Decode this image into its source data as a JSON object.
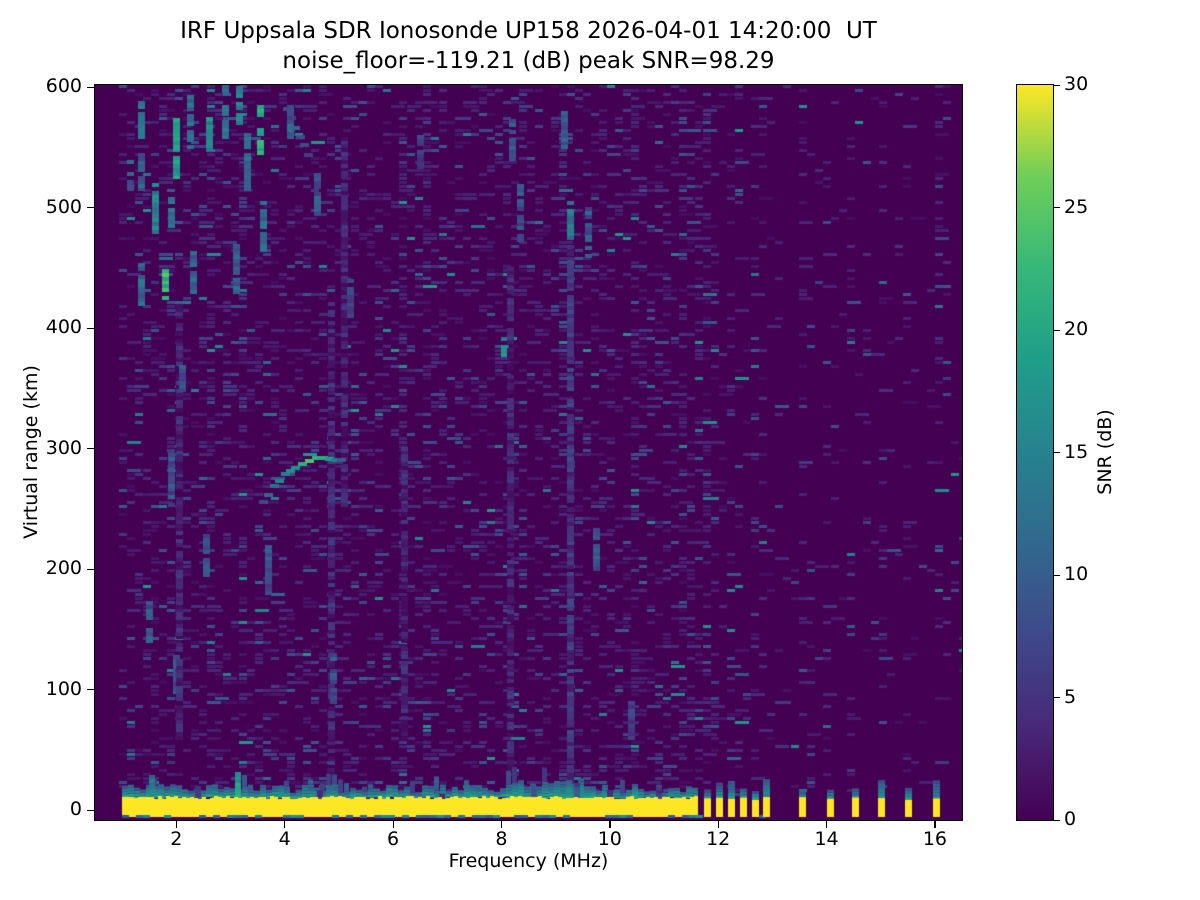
{
  "title": "IRF Uppsala SDR Ionosonde UP158 2026-04-01 14:20:00  UT",
  "subtitle": "noise_floor=-119.21 (dB) peak SNR=98.29",
  "station": "UP158",
  "timestamp_shown": "2026-04-01 14:20:00 UT",
  "noise_floor_db": -119.21,
  "peak_snr_db": 98.29,
  "chart_data": {
    "type": "heatmap",
    "title": "IRF Uppsala SDR Ionosonde UP158 2026-04-01 14:20:00  UT",
    "subtitle": "noise_floor=-119.21 (dB) peak SNR=98.29",
    "xlabel": "Frequency (MHz)",
    "ylabel": "Virtual range (km)",
    "xlim": [
      0.5,
      16.5
    ],
    "ylim": [
      -8,
      602
    ],
    "x_ticks": [
      2,
      4,
      6,
      8,
      10,
      12,
      14,
      16
    ],
    "y_ticks": [
      0,
      100,
      200,
      300,
      400,
      500,
      600
    ],
    "grid": false,
    "colorbar": {
      "label": "SNR (dB)",
      "min": 0,
      "max": 30,
      "ticks": [
        0,
        5,
        10,
        15,
        20,
        25,
        30
      ],
      "colormap": "viridis",
      "position": "right"
    },
    "colormap_stops": [
      [
        0.0,
        "#440154"
      ],
      [
        0.125,
        "#482878"
      ],
      [
        0.25,
        "#3e4989"
      ],
      [
        0.375,
        "#31688e"
      ],
      [
        0.5,
        "#26828e"
      ],
      [
        0.625,
        "#1f9e89"
      ],
      [
        0.75,
        "#35b779"
      ],
      [
        0.875,
        "#6ece58"
      ],
      [
        1.0,
        "#fde725"
      ]
    ],
    "colors": {
      "background_snr0": "#440154",
      "band_yellow": "#fde725"
    },
    "data_start_mhz": 1.0,
    "features": {
      "ground_pulse_band": {
        "freq_start_mhz": 1.0,
        "freq_end_mhz": 11.6,
        "range_km": 0,
        "top_km": 11,
        "bottom_km": -6,
        "snr_db": 30
      },
      "band_fringe": {
        "range_km": [
          10,
          30
        ],
        "snr_db": [
          8,
          20
        ],
        "denser_mhz": [
          8.0,
          9.7
        ]
      },
      "band_spikes": [
        [
          1.55,
          28,
          20
        ],
        [
          2.4,
          18,
          12
        ],
        [
          3.14,
          32,
          24
        ],
        [
          4.65,
          16,
          12
        ],
        [
          6.9,
          14,
          10
        ],
        [
          8.6,
          20,
          14
        ],
        [
          9.4,
          22,
          14
        ],
        [
          10.0,
          16,
          11
        ],
        [
          10.9,
          18,
          12
        ]
      ],
      "interference_stripes_mhz": [
        11.79,
        12.01,
        12.24,
        12.45,
        12.68,
        12.89,
        13.54,
        14.06,
        14.52,
        15.0,
        15.51,
        16.02
      ],
      "interference_stripe_snr_db": 30,
      "echo_traces": [
        {
          "points": [
            [
              3.6,
              255
            ],
            [
              3.8,
              268
            ],
            [
              4.0,
              278
            ],
            [
              4.2,
              285
            ],
            [
              4.45,
              290
            ],
            [
              4.7,
              292
            ],
            [
              4.95,
              291
            ],
            [
              5.12,
              289
            ]
          ],
          "snr_db": [
            9,
            12,
            15,
            19,
            26,
            20,
            13,
            9
          ]
        },
        {
          "points": [
            [
              4.05,
              582
            ],
            [
              4.2,
              566
            ],
            [
              4.35,
              551
            ],
            [
              4.52,
              538
            ]
          ],
          "snr_db": [
            7,
            9,
            9,
            7
          ]
        }
      ],
      "rfi_streaks": [
        [
          1.15,
          515,
          540,
          10
        ],
        [
          1.35,
          555,
          590,
          13
        ],
        [
          1.35,
          515,
          545,
          10
        ],
        [
          1.35,
          420,
          455,
          11
        ],
        [
          1.5,
          140,
          175,
          9
        ],
        [
          1.6,
          480,
          520,
          15
        ],
        [
          1.8,
          425,
          450,
          22
        ],
        [
          1.9,
          485,
          510,
          13
        ],
        [
          1.9,
          250,
          300,
          8
        ],
        [
          2.0,
          525,
          575,
          18
        ],
        [
          2.0,
          95,
          130,
          8
        ],
        [
          2.05,
          60,
          420,
          3.5
        ],
        [
          2.1,
          345,
          370,
          9
        ],
        [
          2.25,
          550,
          595,
          12
        ],
        [
          2.3,
          430,
          465,
          10
        ],
        [
          2.55,
          195,
          230,
          9
        ],
        [
          2.6,
          548,
          575,
          16
        ],
        [
          2.9,
          555,
          600,
          12
        ],
        [
          3.1,
          430,
          470,
          10
        ],
        [
          3.15,
          570,
          600,
          14
        ],
        [
          3.3,
          515,
          560,
          11
        ],
        [
          3.55,
          545,
          585,
          20
        ],
        [
          3.6,
          465,
          505,
          12
        ],
        [
          3.7,
          180,
          220,
          8
        ],
        [
          4.1,
          555,
          585,
          10
        ],
        [
          4.6,
          495,
          530,
          9
        ],
        [
          4.85,
          20,
          420,
          3.5
        ],
        [
          4.9,
          90,
          130,
          8
        ],
        [
          5.1,
          250,
          560,
          3
        ],
        [
          5.2,
          410,
          440,
          8
        ],
        [
          6.2,
          60,
          300,
          3
        ],
        [
          6.5,
          530,
          560,
          7
        ],
        [
          8.05,
          378,
          395,
          16
        ],
        [
          8.16,
          30,
          450,
          3
        ],
        [
          8.2,
          540,
          575,
          9
        ],
        [
          8.35,
          470,
          520,
          8
        ],
        [
          9.15,
          550,
          585,
          9
        ],
        [
          9.27,
          10,
          470,
          5
        ],
        [
          9.27,
          475,
          505,
          13
        ],
        [
          9.6,
          460,
          500,
          9
        ],
        [
          9.75,
          200,
          235,
          8
        ],
        [
          10.4,
          60,
          90,
          7
        ]
      ],
      "noise_speckle": {
        "density_below_11_65_mhz": 0.22,
        "density_near_stripes": 0.16,
        "density_far_right": 0.03,
        "snr_range_db": [
          1,
          18
        ]
      }
    }
  }
}
